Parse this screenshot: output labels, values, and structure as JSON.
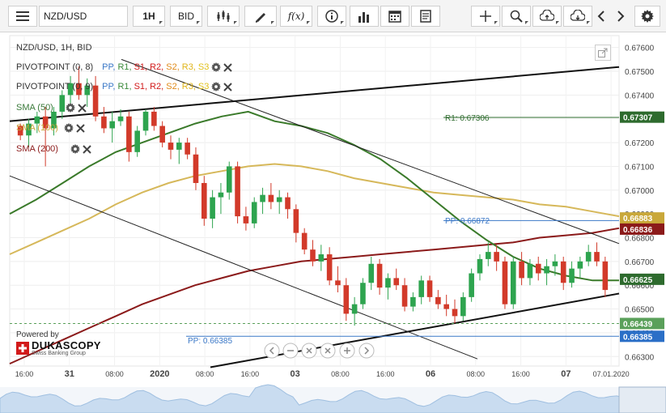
{
  "toolbar": {
    "menu_icon": "hamburger-icon",
    "symbol": "NZD/USD",
    "period": "1H",
    "price_type": "BID"
  },
  "chart_title": "NZD/USD, 1H, BID",
  "indicators": [
    {
      "name": "PIVOTPOINT (0, 8)",
      "levels": [
        "PP,",
        "R1,",
        "S1,",
        "R2,",
        "S2,",
        "R3,",
        "S3"
      ]
    },
    {
      "name": "PIVOTPOINT (0, 9)",
      "levels": [
        "PP,",
        "R1,",
        "S1,",
        "R2,",
        "S2,",
        "R3,",
        "S3"
      ]
    },
    {
      "name": "SMA (50)"
    },
    {
      "name": "SMA (100)"
    },
    {
      "name": "SMA (200)"
    }
  ],
  "level_colors": {
    "PP": "#3b78c7",
    "R1": "#3a8a3a",
    "S1": "#d21a1a",
    "R2": "#d21a1a",
    "S2": "#e08a1a",
    "R3": "#e0b51a",
    "S3": "#e0c01a"
  },
  "pivot_labels": {
    "r1": "R1: 0.67306",
    "pp_upper": "PP: 0.66872",
    "pp_lower": "PP: 0.66385"
  },
  "powered_by": {
    "text": "Powered by",
    "brand": "DUKASCOPY",
    "tagline": "Swiss Banking Group"
  },
  "chart_data": {
    "type": "candlestick",
    "symbol": "NZD/USD",
    "timeframe": "1H",
    "y_axis": {
      "min": 0.6626,
      "max": 0.6765,
      "ticks": [
        "0.67600",
        "0.67500",
        "0.67400",
        "0.67300",
        "0.67200",
        "0.67100",
        "0.67000",
        "0.66900",
        "0.66800",
        "0.66700",
        "0.66600",
        "0.66500",
        "0.66400",
        "0.66300"
      ]
    },
    "x_axis_labels": [
      "16:00",
      "31",
      "08:00",
      "2020",
      "08:00",
      "16:00",
      "03",
      "08:00",
      "16:00",
      "06",
      "08:00",
      "16:00",
      "07",
      "07.01.2020"
    ],
    "price_badges": [
      {
        "label": "0.67307",
        "value": 0.67307,
        "color": "#2e6b2e"
      },
      {
        "label": "0.66883",
        "value": 0.66883,
        "color": "#c9a83a"
      },
      {
        "label": "0.66836",
        "value": 0.66836,
        "color": "#8b1a1a"
      },
      {
        "label": "0.66625",
        "value": 0.66625,
        "color": "#2e6b2e"
      },
      {
        "label": "0.66439",
        "value": 0.66439,
        "color": "#5aa05a"
      },
      {
        "label": "0.66385",
        "value": 0.66385,
        "color": "#2b6fc7"
      }
    ],
    "sma50": [
      0.669,
      0.6696,
      0.6703,
      0.671,
      0.6716,
      0.672,
      0.6724,
      0.6728,
      0.6731,
      0.6733,
      0.6729,
      0.6727,
      0.6724,
      0.6719,
      0.6713,
      0.6705,
      0.6696,
      0.6687,
      0.6679,
      0.6672,
      0.6667,
      0.6664,
      0.6662,
      0.6662
    ],
    "sma100": [
      0.6673,
      0.6678,
      0.6683,
      0.6688,
      0.6694,
      0.6699,
      0.6703,
      0.6706,
      0.6708,
      0.671,
      0.6711,
      0.671,
      0.6708,
      0.6705,
      0.6703,
      0.6701,
      0.6699,
      0.6698,
      0.6697,
      0.6696,
      0.6694,
      0.6693,
      0.6691,
      0.6689
    ],
    "sma200": [
      0.6627,
      0.6632,
      0.6637,
      0.6642,
      0.6647,
      0.6652,
      0.6656,
      0.666,
      0.6663,
      0.6666,
      0.6668,
      0.667,
      0.6671,
      0.6672,
      0.6673,
      0.6674,
      0.6675,
      0.6676,
      0.6677,
      0.6678,
      0.668,
      0.6681,
      0.6682,
      0.6684
    ],
    "candles": [
      [
        0.6727,
        0.6728,
        0.6721,
        0.6723
      ],
      [
        0.6723,
        0.673,
        0.6718,
        0.6728
      ],
      [
        0.6728,
        0.6733,
        0.6724,
        0.6731
      ],
      [
        0.6731,
        0.6735,
        0.671,
        0.6726
      ],
      [
        0.6726,
        0.6735,
        0.6723,
        0.6733
      ],
      [
        0.6733,
        0.6742,
        0.673,
        0.674
      ],
      [
        0.674,
        0.6748,
        0.6736,
        0.6745
      ],
      [
        0.6745,
        0.6752,
        0.6738,
        0.674
      ],
      [
        0.674,
        0.6747,
        0.6735,
        0.6744
      ],
      [
        0.6744,
        0.6748,
        0.6729,
        0.6731
      ],
      [
        0.6731,
        0.6735,
        0.6724,
        0.6726
      ],
      [
        0.6726,
        0.6733,
        0.672,
        0.6729
      ],
      [
        0.6729,
        0.6734,
        0.6727,
        0.6731
      ],
      [
        0.6731,
        0.6733,
        0.6712,
        0.6716
      ],
      [
        0.6716,
        0.6727,
        0.6714,
        0.6725
      ],
      [
        0.6725,
        0.6734,
        0.6723,
        0.6733
      ],
      [
        0.6733,
        0.6735,
        0.6725,
        0.6727
      ],
      [
        0.6727,
        0.6729,
        0.6718,
        0.672
      ],
      [
        0.672,
        0.6723,
        0.6713,
        0.6717
      ],
      [
        0.6717,
        0.6722,
        0.6711,
        0.672
      ],
      [
        0.672,
        0.6722,
        0.6713,
        0.6715
      ],
      [
        0.6715,
        0.6718,
        0.67,
        0.6703
      ],
      [
        0.6703,
        0.6706,
        0.6685,
        0.6688
      ],
      [
        0.6688,
        0.67,
        0.6684,
        0.6697
      ],
      [
        0.6697,
        0.6703,
        0.669,
        0.6699
      ],
      [
        0.6699,
        0.6712,
        0.6696,
        0.671
      ],
      [
        0.671,
        0.6712,
        0.6686,
        0.6689
      ],
      [
        0.6689,
        0.6693,
        0.6683,
        0.6686
      ],
      [
        0.6686,
        0.6697,
        0.6684,
        0.6695
      ],
      [
        0.6695,
        0.6701,
        0.669,
        0.6698
      ],
      [
        0.6698,
        0.6703,
        0.6692,
        0.6695
      ],
      [
        0.6695,
        0.67,
        0.669,
        0.6697
      ],
      [
        0.6697,
        0.6699,
        0.6688,
        0.6692
      ],
      [
        0.6692,
        0.6694,
        0.6678,
        0.6682
      ],
      [
        0.6682,
        0.6684,
        0.6673,
        0.6675
      ],
      [
        0.6675,
        0.6679,
        0.6668,
        0.667
      ],
      [
        0.667,
        0.6677,
        0.6666,
        0.6673
      ],
      [
        0.6673,
        0.6676,
        0.666,
        0.6662
      ],
      [
        0.6662,
        0.6668,
        0.6657,
        0.666
      ],
      [
        0.666,
        0.6663,
        0.6645,
        0.6648
      ],
      [
        0.6648,
        0.6655,
        0.6643,
        0.6652
      ],
      [
        0.6652,
        0.6663,
        0.665,
        0.6661
      ],
      [
        0.6661,
        0.6672,
        0.6658,
        0.6669
      ],
      [
        0.6669,
        0.6671,
        0.6656,
        0.6659
      ],
      [
        0.6659,
        0.6665,
        0.6654,
        0.6663
      ],
      [
        0.6663,
        0.6667,
        0.6658,
        0.666
      ],
      [
        0.666,
        0.6663,
        0.6649,
        0.6651
      ],
      [
        0.6651,
        0.6657,
        0.6649,
        0.6655
      ],
      [
        0.6655,
        0.6664,
        0.6652,
        0.6662
      ],
      [
        0.6662,
        0.6664,
        0.6653,
        0.6655
      ],
      [
        0.6655,
        0.6658,
        0.665,
        0.6652
      ],
      [
        0.6652,
        0.6656,
        0.6647,
        0.665
      ],
      [
        0.665,
        0.6654,
        0.6644,
        0.6647
      ],
      [
        0.6647,
        0.6657,
        0.6645,
        0.6655
      ],
      [
        0.6655,
        0.6667,
        0.6653,
        0.6665
      ],
      [
        0.6665,
        0.6673,
        0.6662,
        0.6671
      ],
      [
        0.6671,
        0.6678,
        0.6668,
        0.6674
      ],
      [
        0.6674,
        0.6677,
        0.6666,
        0.667
      ],
      [
        0.667,
        0.6672,
        0.665,
        0.6652
      ],
      [
        0.6652,
        0.6672,
        0.665,
        0.667
      ],
      [
        0.667,
        0.6674,
        0.666,
        0.6663
      ],
      [
        0.6663,
        0.6671,
        0.666,
        0.6669
      ],
      [
        0.6669,
        0.6672,
        0.6662,
        0.6665
      ],
      [
        0.6665,
        0.6671,
        0.666,
        0.6668
      ],
      [
        0.6668,
        0.6673,
        0.6664,
        0.667
      ],
      [
        0.667,
        0.6672,
        0.6658,
        0.6661
      ],
      [
        0.6661,
        0.667,
        0.6659,
        0.6667
      ],
      [
        0.6667,
        0.6672,
        0.6663,
        0.667
      ],
      [
        0.667,
        0.6677,
        0.6668,
        0.6674
      ],
      [
        0.6674,
        0.6678,
        0.6668,
        0.667
      ],
      [
        0.667,
        0.6672,
        0.6655,
        0.6658
      ]
    ]
  }
}
